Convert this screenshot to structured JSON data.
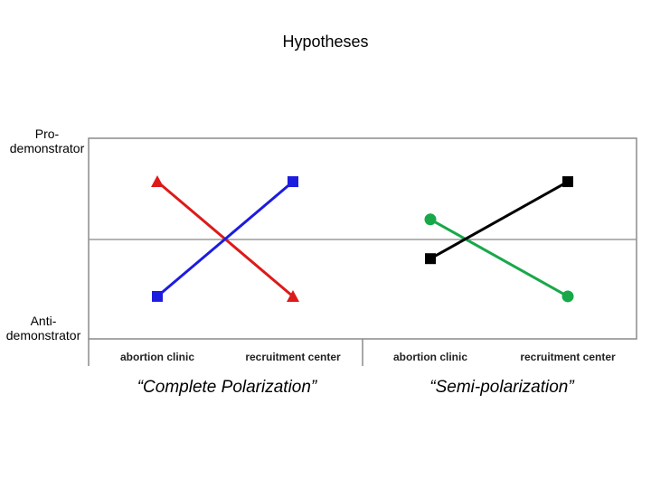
{
  "chart_data": {
    "type": "line",
    "title": "Hypotheses",
    "y_levels": [
      "Pro-\ndemonstrator",
      "Anti-\ndemonstrator"
    ],
    "ylim": [
      0,
      1
    ],
    "grid": "midline",
    "panels": [
      {
        "caption": "“Complete Polarization”",
        "categories": [
          "abortion clinic",
          "recruitment center"
        ],
        "series": [
          {
            "color": "#dd1a1a",
            "marker": "triangle",
            "values": [
              0.88,
              0.12
            ]
          },
          {
            "color": "#1c1ce0",
            "marker": "square",
            "values": [
              0.12,
              0.88
            ]
          }
        ]
      },
      {
        "caption": "“Semi-polarization”",
        "categories": [
          "abortion clinic",
          "recruitment center"
        ],
        "series": [
          {
            "color": "#18a84a",
            "marker": "circle",
            "values": [
              0.63,
              0.12
            ]
          },
          {
            "color": "#000000",
            "marker": "square",
            "values": [
              0.37,
              0.88
            ]
          }
        ]
      }
    ]
  }
}
